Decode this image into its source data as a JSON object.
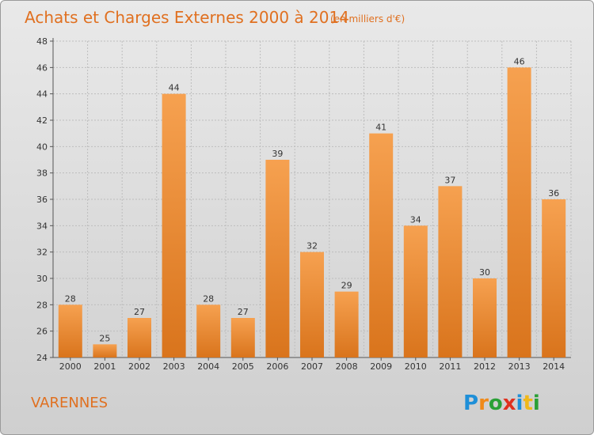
{
  "chart_data": {
    "type": "bar",
    "title": "Achats et Charges Externes 2000 à 2014",
    "subtitle": "(en milliers d'€)",
    "categories": [
      "2000",
      "2001",
      "2002",
      "2003",
      "2004",
      "2005",
      "2006",
      "2007",
      "2008",
      "2009",
      "2010",
      "2011",
      "2012",
      "2013",
      "2014"
    ],
    "values": [
      28,
      25,
      27,
      44,
      28,
      27,
      39,
      32,
      29,
      41,
      34,
      37,
      30,
      46,
      36
    ],
    "ylim": [
      24,
      48
    ],
    "yticks": [
      24,
      26,
      28,
      30,
      32,
      34,
      36,
      38,
      40,
      42,
      44,
      46,
      48
    ],
    "grid": true,
    "xlabel": "",
    "ylabel": ""
  },
  "footer": {
    "commune": "VARENNES",
    "logo": {
      "letters": [
        "P",
        "r",
        "o",
        "x",
        "i",
        "t",
        "i"
      ],
      "colors": [
        "#1e8fd8",
        "#f08a1a",
        "#2aa036",
        "#e0301e",
        "#1e8fd8",
        "#f0b81a",
        "#2aa036"
      ]
    }
  },
  "colors": {
    "bar_top": "#f6a150",
    "bar_bottom": "#d9741c",
    "title": "#e07020",
    "grid": "#bdbdbd"
  }
}
